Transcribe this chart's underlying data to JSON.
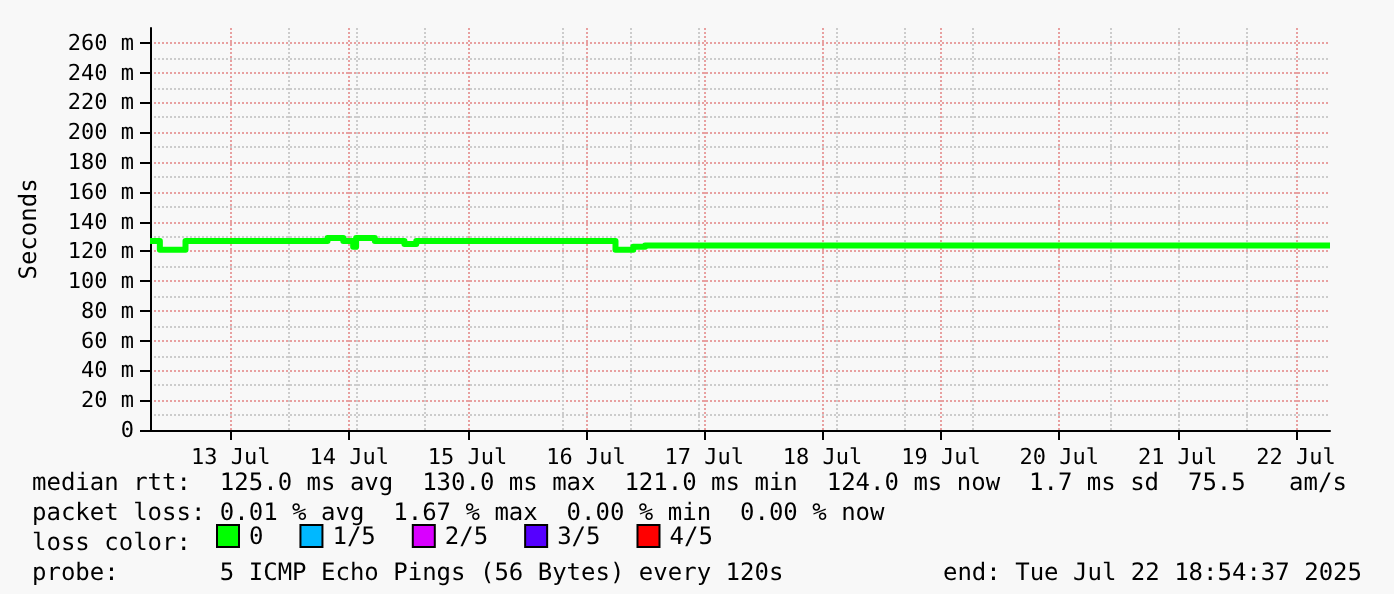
{
  "chart_data": {
    "type": "step",
    "ylabel": "Seconds",
    "legend_title": "loss color:",
    "annotations": [
      "median rtt:  125.0 ms avg  130.0 ms max  121.0 ms min  124.0 ms now  1.7 ms sd  75.5   am/s",
      "packet loss: 0.01 % avg  1.67 % max  0.00 % min  0.00 % now",
      "probe:       5 ICMP Echo Pings (56 Bytes) every 120s",
      "end: Tue Jul 22 18:54:37 2025"
    ],
    "series": [
      {
        "name": "0",
        "color": "#00ff00",
        "x": [
          "2025-07-12T19:36",
          "2025-07-12T21:36",
          "2025-07-13T02:48",
          "2025-07-14T07:36",
          "2025-07-14T10:48",
          "2025-07-14T12:48",
          "2025-07-14T13:24",
          "2025-07-14T17:12",
          "2025-07-14T23:12",
          "2025-07-15T01:36",
          "2025-07-16T18:00",
          "2025-07-16T21:36",
          "2025-07-17T00:00",
          "2025-07-22T18:54"
        ],
        "values": [
          127,
          121,
          127,
          129,
          127,
          123,
          129,
          127,
          125,
          127,
          121,
          123,
          124,
          124
        ]
      },
      {
        "name": "1/5",
        "color": "#00b8ff"
      },
      {
        "name": "2/5",
        "color": "#d900ff"
      },
      {
        "name": "3/5",
        "color": "#5500ff"
      },
      {
        "name": "4/5",
        "color": "#ff0000"
      }
    ],
    "xlim": [
      "2025-07-12T19:36",
      "2025-07-22T18:54"
    ],
    "xticks": [
      {
        "value": "2025-07-13T12:00",
        "label": "13 Jul"
      },
      {
        "value": "2025-07-14T12:00",
        "label": "14 Jul"
      },
      {
        "value": "2025-07-15T12:00",
        "label": "15 Jul"
      },
      {
        "value": "2025-07-16T12:00",
        "label": "16 Jul"
      },
      {
        "value": "2025-07-17T12:00",
        "label": "17 Jul"
      },
      {
        "value": "2025-07-18T12:00",
        "label": "18 Jul"
      },
      {
        "value": "2025-07-19T12:00",
        "label": "19 Jul"
      },
      {
        "value": "2025-07-20T12:00",
        "label": "20 Jul"
      },
      {
        "value": "2025-07-21T12:00",
        "label": "21 Jul"
      },
      {
        "value": "2025-07-22T12:00",
        "label": "22 Jul"
      }
    ],
    "ylim": [
      0,
      270
    ],
    "yticks": [
      {
        "value": 0,
        "label": "0"
      },
      {
        "value": 20,
        "label": "20 m"
      },
      {
        "value": 40,
        "label": "40 m"
      },
      {
        "value": 60,
        "label": "60 m"
      },
      {
        "value": 80,
        "label": "80 m"
      },
      {
        "value": 100,
        "label": "100 m"
      },
      {
        "value": 120,
        "label": "120 m"
      },
      {
        "value": 140,
        "label": "140 m"
      },
      {
        "value": 160,
        "label": "160 m"
      },
      {
        "value": 180,
        "label": "180 m"
      },
      {
        "value": 200,
        "label": "200 m"
      },
      {
        "value": 220,
        "label": "220 m"
      },
      {
        "value": 240,
        "label": "240 m"
      },
      {
        "value": 260,
        "label": "260 m"
      }
    ],
    "grid": true,
    "legend": "bottom",
    "marker": "none",
    "line_style": "solid"
  }
}
